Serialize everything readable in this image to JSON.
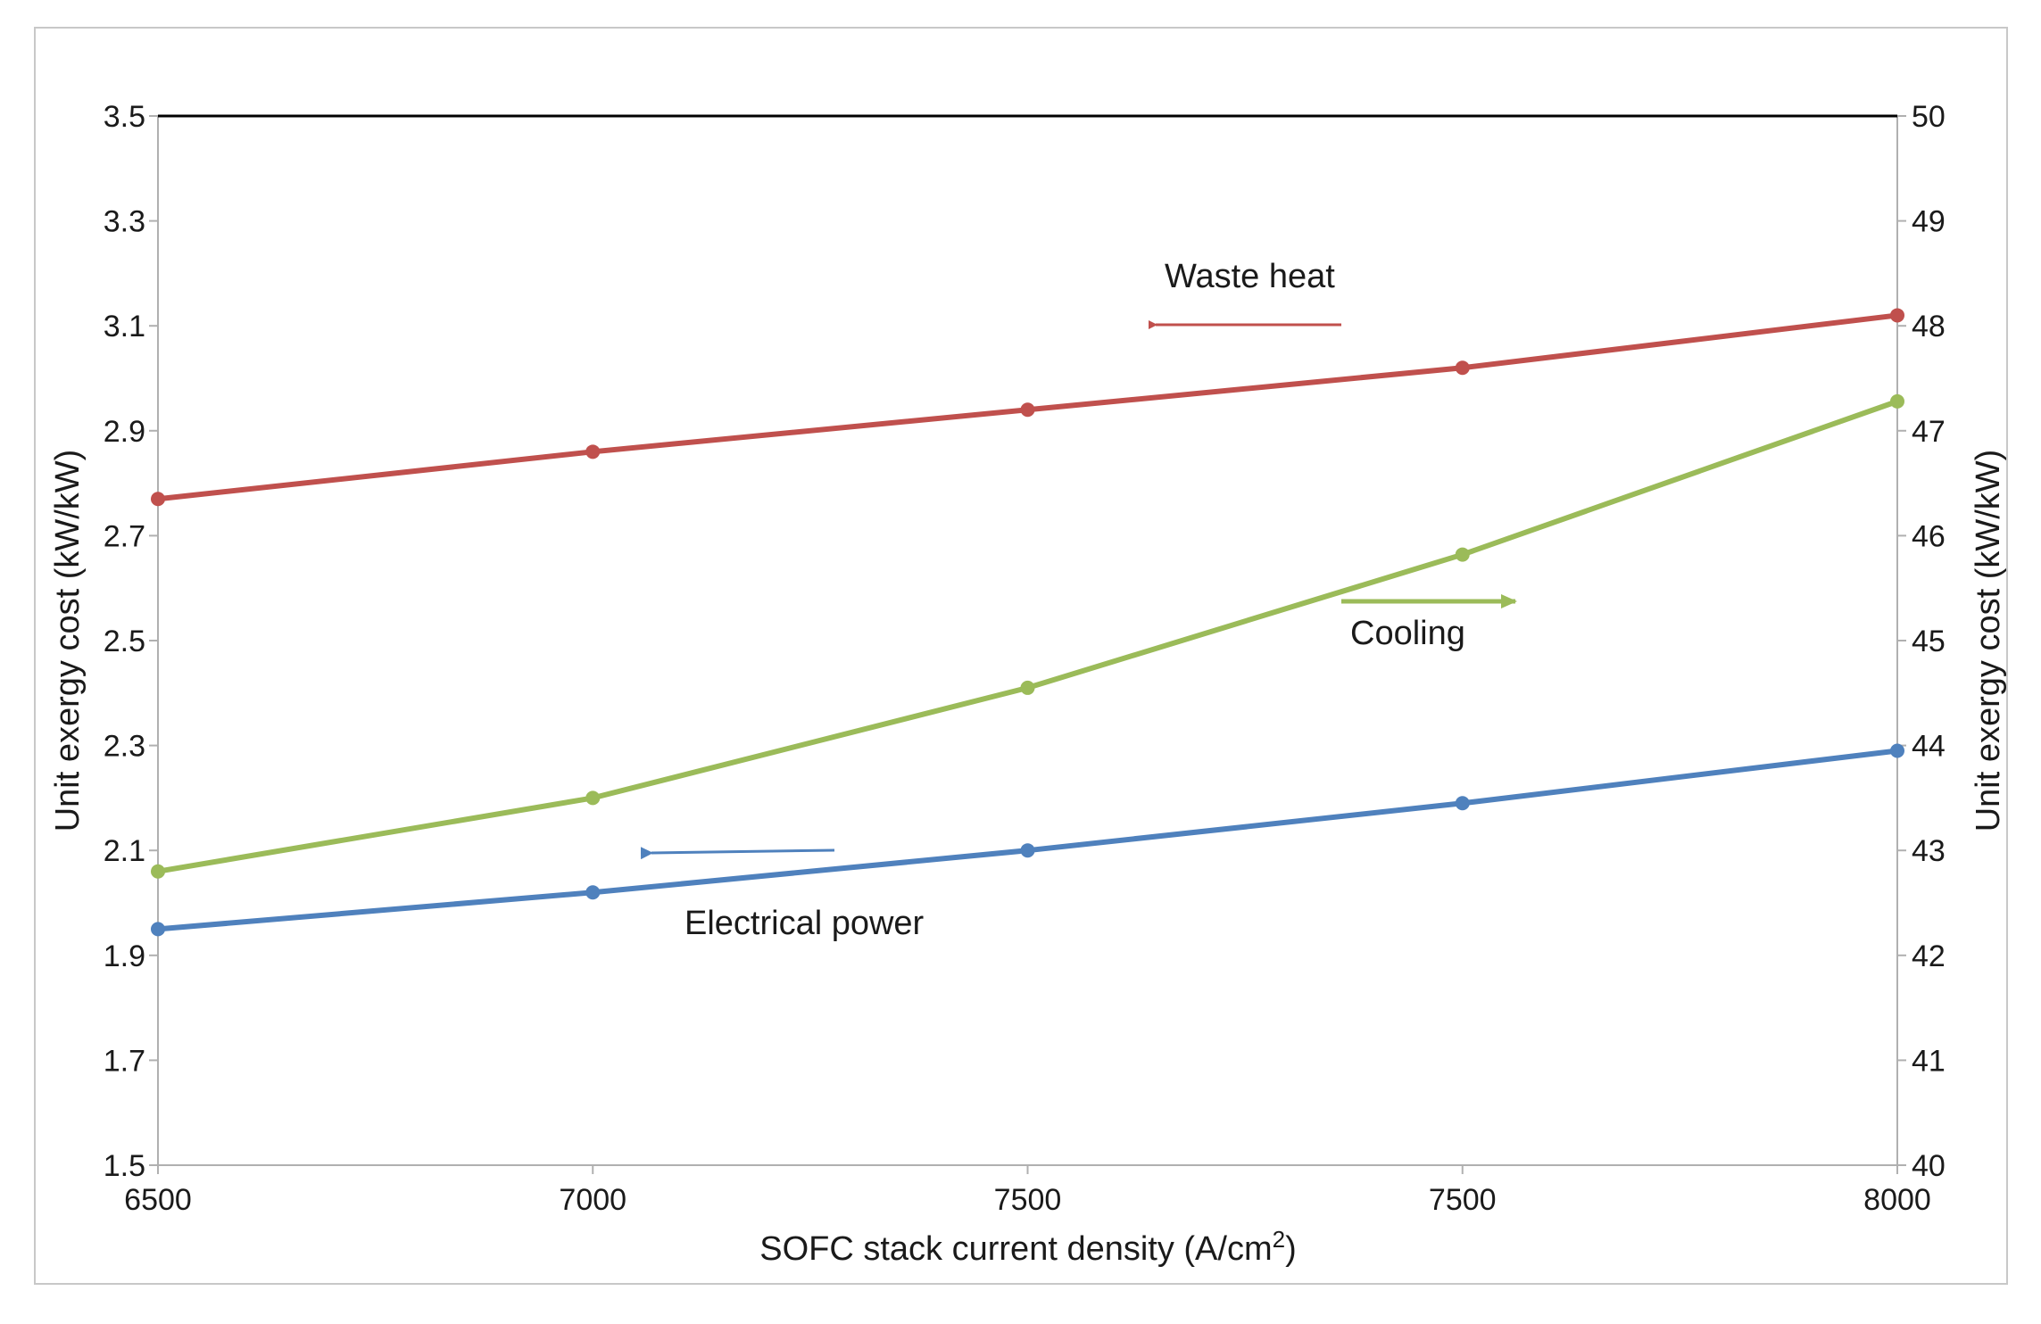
{
  "chart_data": {
    "type": "line",
    "title": "",
    "xlabel": "SOFC stack current density (A/cm",
    "xlabel_superscript": "2",
    "xlabel_suffix": ")",
    "ylabel_left": "Unit exergy cost (kW/kW)",
    "ylabel_right": "Unit exergy cost (kW/kW)",
    "categories": [
      "6500",
      "7000",
      "7500",
      "7500",
      "8000"
    ],
    "ylim_left": [
      1.5,
      3.5
    ],
    "ylim_right": [
      40,
      50
    ],
    "yticks_left": [
      "1.5",
      "1.7",
      "1.9",
      "2.1",
      "2.3",
      "2.5",
      "2.7",
      "2.9",
      "3.1",
      "3.3",
      "3.5"
    ],
    "yticks_right": [
      "40",
      "41",
      "42",
      "43",
      "44",
      "45",
      "46",
      "47",
      "48",
      "49",
      "50"
    ],
    "gridlines": false,
    "series": [
      {
        "name": "Waste heat",
        "axis": "left",
        "color": "#c0504d",
        "values": [
          2.77,
          2.86,
          2.94,
          3.02,
          3.12
        ]
      },
      {
        "name": "Cooling",
        "axis": "right",
        "color": "#9bbb59",
        "values": [
          42.8,
          43.5,
          44.55,
          45.82,
          47.28
        ]
      },
      {
        "name": "Electrical power",
        "axis": "left",
        "color": "#4f81bd",
        "values": [
          1.95,
          2.02,
          2.1,
          2.19,
          2.29
        ]
      }
    ],
    "annotations": [
      {
        "text": "Waste heat",
        "color": "#c0504d",
        "arrow": "left"
      },
      {
        "text": "Cooling",
        "color": "#9bbb59",
        "arrow": "right"
      },
      {
        "text": "Electrical power",
        "color": "#4f81bd",
        "arrow": "left"
      }
    ]
  }
}
